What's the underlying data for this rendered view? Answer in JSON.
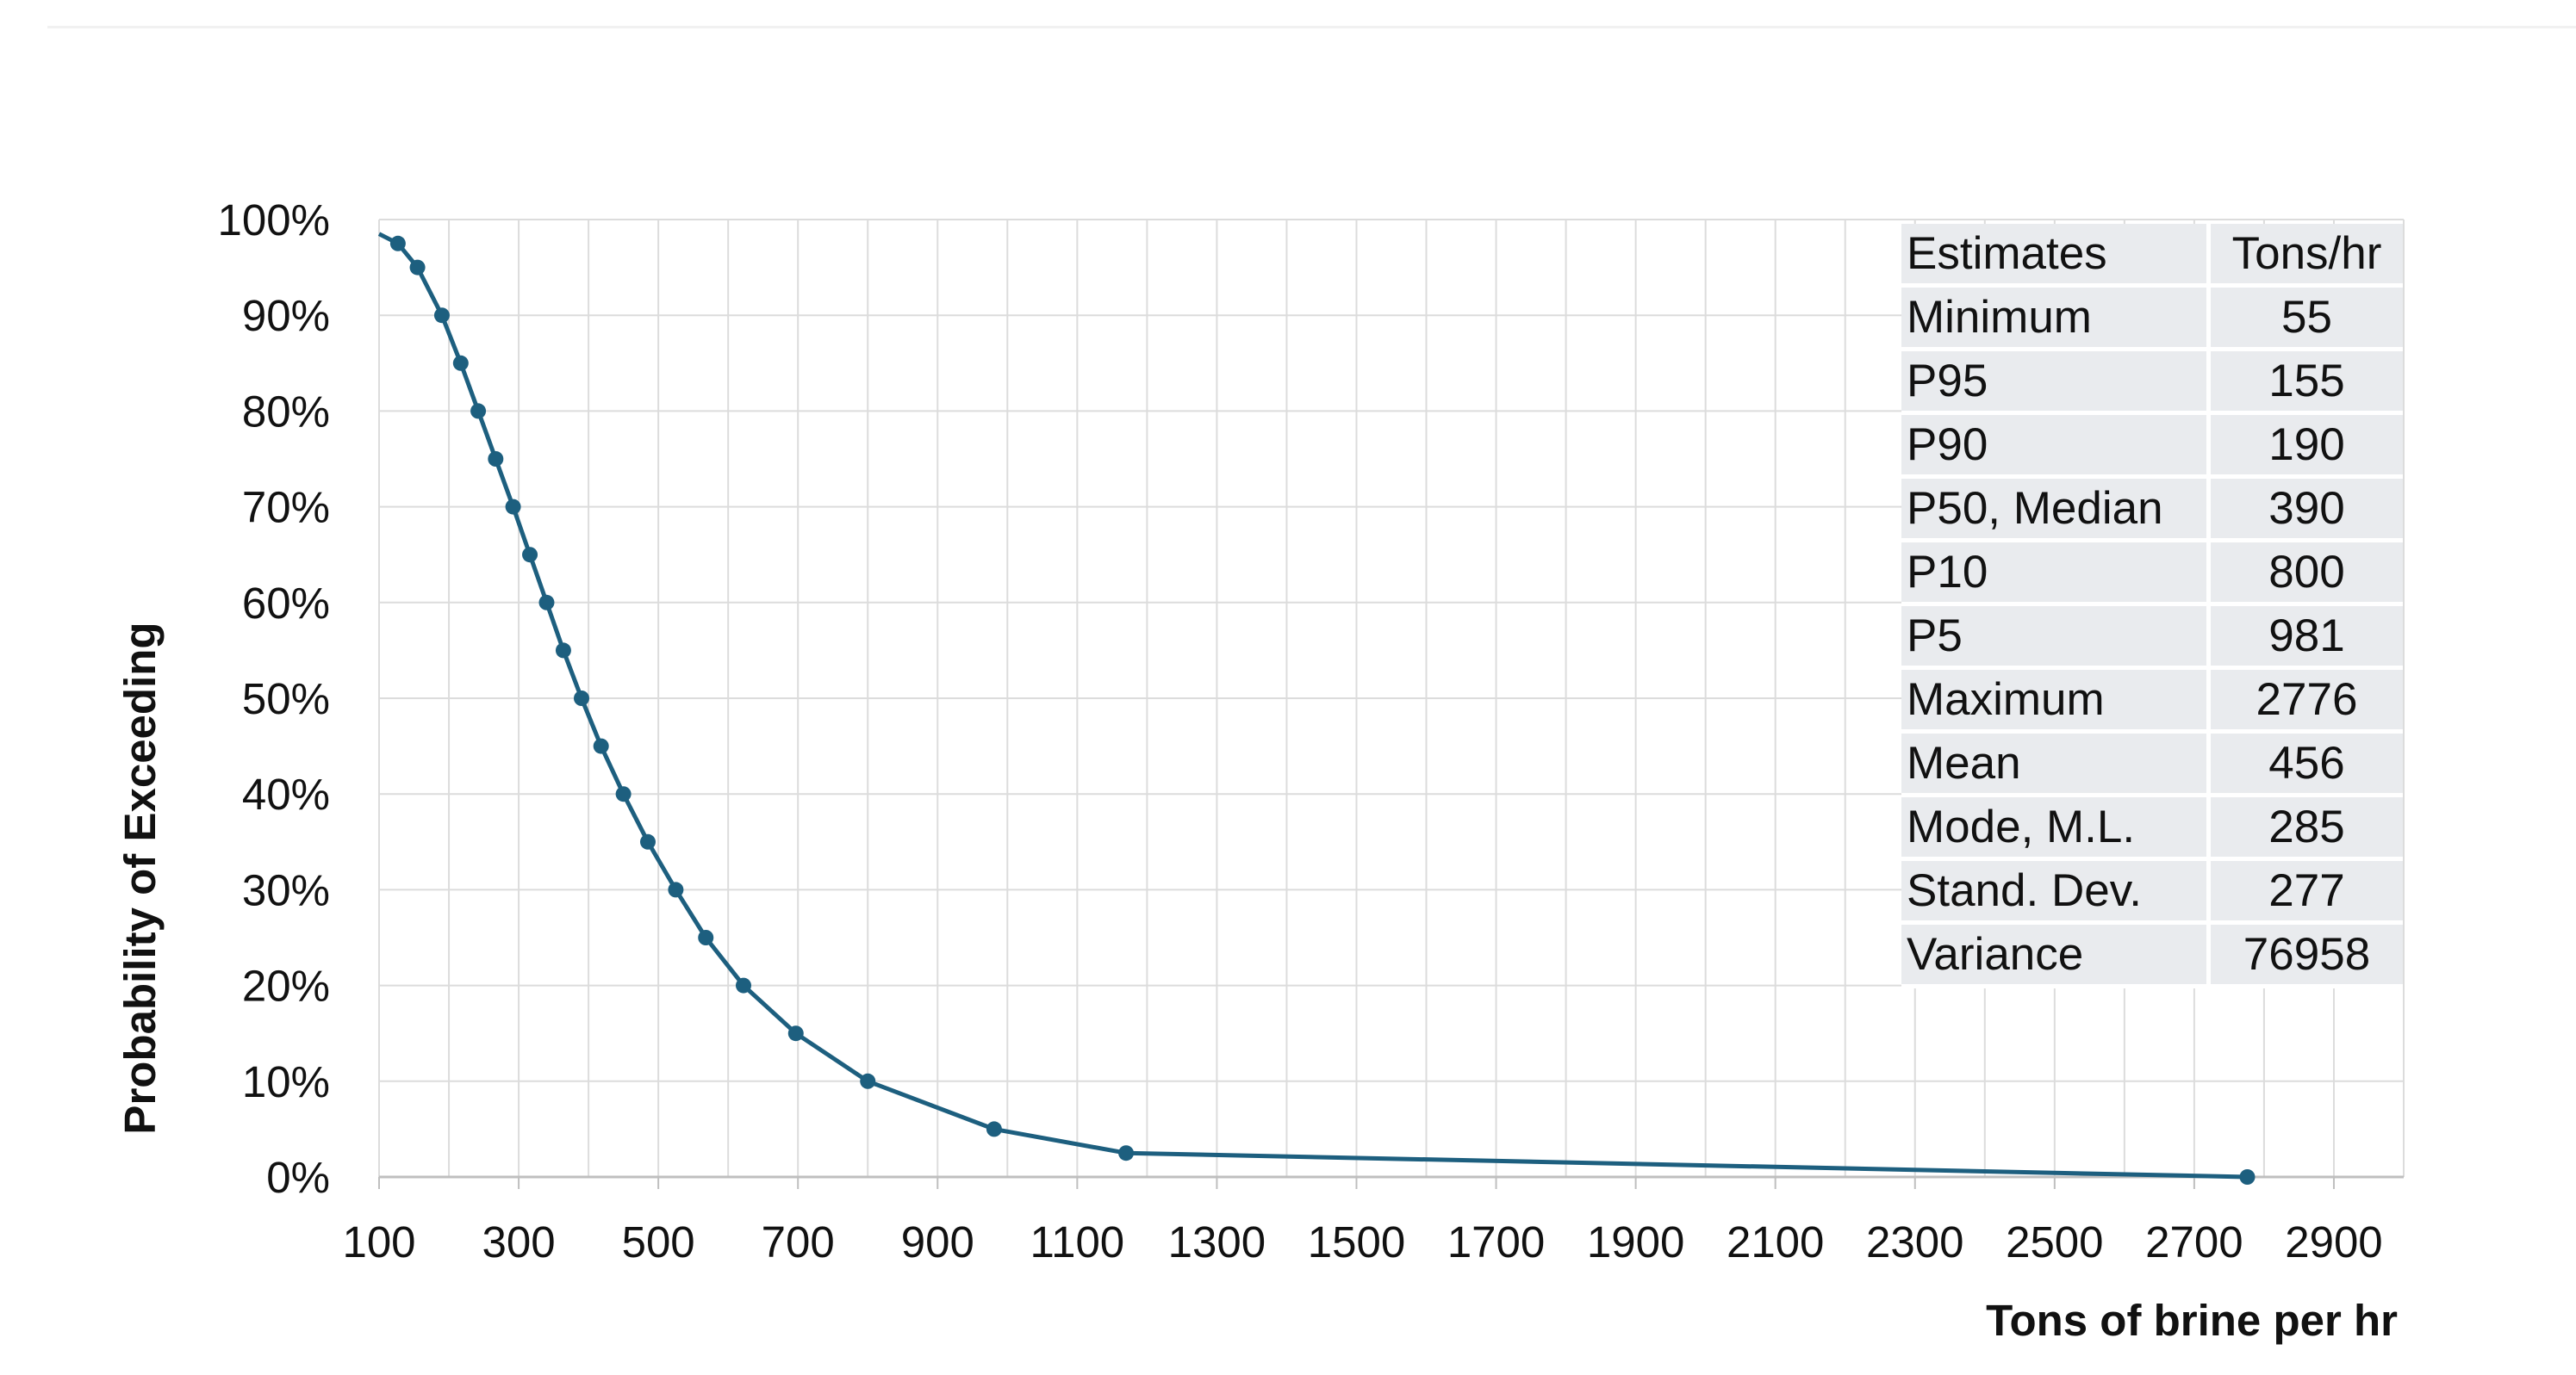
{
  "chart_data": {
    "type": "line",
    "title": "",
    "xlabel": "Tons of brine per hr",
    "ylabel": "Probability of Exceeding",
    "xlim": [
      100,
      3000
    ],
    "ylim": [
      0,
      100
    ],
    "x_ticks": [
      "100",
      "300",
      "500",
      "700",
      "900",
      "1100",
      "1300",
      "1500",
      "1700",
      "1900",
      "2100",
      "2300",
      "2500",
      "2700",
      "2900"
    ],
    "y_ticks": [
      "0%",
      "10%",
      "20%",
      "30%",
      "40%",
      "50%",
      "60%",
      "70%",
      "80%",
      "90%",
      "100%"
    ],
    "grid": true,
    "legend": "none",
    "line_color": "#1d5f7f",
    "series": [
      {
        "points": [
          {
            "x": 100,
            "y": 98.5,
            "marker": false
          },
          {
            "x": 127,
            "y": 97.5
          },
          {
            "x": 155,
            "y": 95
          },
          {
            "x": 190,
            "y": 90
          },
          {
            "x": 217,
            "y": 85
          },
          {
            "x": 242,
            "y": 80
          },
          {
            "x": 267,
            "y": 75
          },
          {
            "x": 292,
            "y": 70
          },
          {
            "x": 316,
            "y": 65
          },
          {
            "x": 340,
            "y": 60
          },
          {
            "x": 364,
            "y": 55
          },
          {
            "x": 390,
            "y": 50
          },
          {
            "x": 418,
            "y": 45
          },
          {
            "x": 450,
            "y": 40
          },
          {
            "x": 485,
            "y": 35
          },
          {
            "x": 525,
            "y": 30
          },
          {
            "x": 568,
            "y": 25
          },
          {
            "x": 622,
            "y": 20
          },
          {
            "x": 697,
            "y": 15
          },
          {
            "x": 800,
            "y": 10
          },
          {
            "x": 981,
            "y": 5
          },
          {
            "x": 1170,
            "y": 2.5
          },
          {
            "x": 2776,
            "y": 0
          }
        ]
      }
    ]
  },
  "table": {
    "header": {
      "label": "Estimates",
      "value": "Tons/hr"
    },
    "rows": [
      {
        "label": "Minimum",
        "value": "55"
      },
      {
        "label": "P95",
        "value": "155"
      },
      {
        "label": "P90",
        "value": "190"
      },
      {
        "label": "P50, Median",
        "value": "390"
      },
      {
        "label": "P10",
        "value": "800"
      },
      {
        "label": "P5",
        "value": "981"
      },
      {
        "label": "Maximum",
        "value": "2776"
      },
      {
        "label": "Mean",
        "value": "456"
      },
      {
        "label": "Mode, M.L.",
        "value": "285"
      },
      {
        "label": "Stand. Dev.",
        "value": "277"
      },
      {
        "label": "Variance",
        "value": "76958"
      }
    ]
  }
}
